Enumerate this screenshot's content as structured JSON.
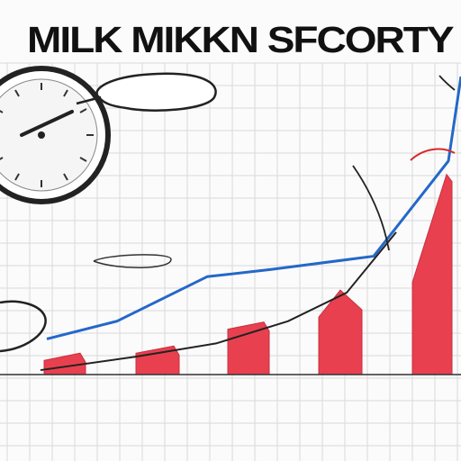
{
  "title": "MILK MIKKN SFCORTY",
  "header_scribble": "",
  "chart_data": {
    "type": "bar",
    "title": "MILK MIKKN SFCORTY",
    "categories": [
      "",
      "",
      "",
      "",
      ""
    ],
    "tick_labels_top": [
      "",
      "",
      "",
      "",
      ""
    ],
    "tick_labels_bottom": [
      "",
      "",
      "",
      "",
      ""
    ],
    "series": [
      {
        "values": [
          20,
          28,
          55,
          95,
          225
        ],
        "color": "#e8404f"
      }
    ],
    "line_series": [
      {
        "color": "#2468c8",
        "values": [
          40,
          60,
          110,
          118,
          133,
          240,
          335
        ]
      },
      {
        "color": "#222222",
        "values": [
          5,
          20,
          35,
          60,
          92,
          160
        ]
      }
    ],
    "ylim": [
      0,
      340
    ],
    "grid": true,
    "annotations": [
      "",
      "",
      ""
    ]
  },
  "colors": {
    "bar": "#e8404f",
    "line_blue": "#2468c8",
    "line_black": "#222222",
    "grid": "#d9d9d9"
  },
  "icons": [
    "clock-icon"
  ]
}
